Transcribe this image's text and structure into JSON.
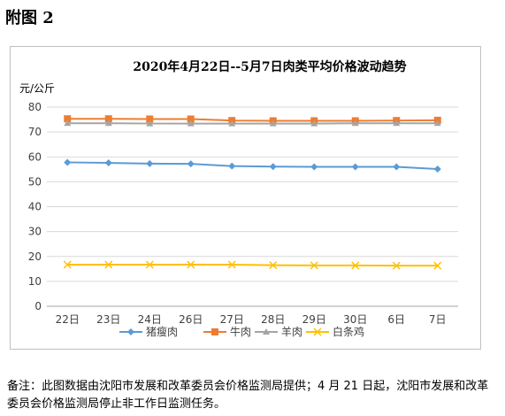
{
  "figure_label": "附图 2",
  "note": "备注：此图数据由沈阳市发展和改革委员会价格监测局提供；4 月 21 日起，沈阳市发展和改革委员会价格监测局停止非工作日监测任务。",
  "chart_data": {
    "type": "line",
    "title": "2020年4月22日--5月7日肉类平均价格波动趋势",
    "ylabel": "元/公斤",
    "xlabel": "",
    "categories": [
      "22日",
      "23日",
      "24日",
      "26日",
      "27日",
      "28日",
      "29日",
      "30日",
      "6日",
      "7日"
    ],
    "ylim": [
      0,
      80
    ],
    "yticks": [
      0,
      10,
      20,
      30,
      40,
      50,
      60,
      70,
      80
    ],
    "grid": true,
    "legend_position": "bottom",
    "series": [
      {
        "name": "猪瘦肉",
        "color": "#5b9bd5",
        "marker": "diamond",
        "values": [
          57.8,
          57.6,
          57.3,
          57.2,
          56.3,
          56.1,
          56.0,
          56.0,
          56.0,
          55.1
        ]
      },
      {
        "name": "牛肉",
        "color": "#ed7d31",
        "marker": "square",
        "values": [
          75.3,
          75.3,
          75.2,
          75.2,
          74.6,
          74.5,
          74.5,
          74.5,
          74.6,
          74.7
        ]
      },
      {
        "name": "羊肉",
        "color": "#a5a5a5",
        "marker": "triangle",
        "values": [
          73.5,
          73.5,
          73.4,
          73.4,
          73.4,
          73.4,
          73.4,
          73.5,
          73.5,
          73.5
        ]
      },
      {
        "name": "白条鸡",
        "color": "#ffc000",
        "marker": "x",
        "values": [
          16.7,
          16.7,
          16.7,
          16.7,
          16.7,
          16.5,
          16.4,
          16.4,
          16.3,
          16.3
        ]
      }
    ]
  }
}
